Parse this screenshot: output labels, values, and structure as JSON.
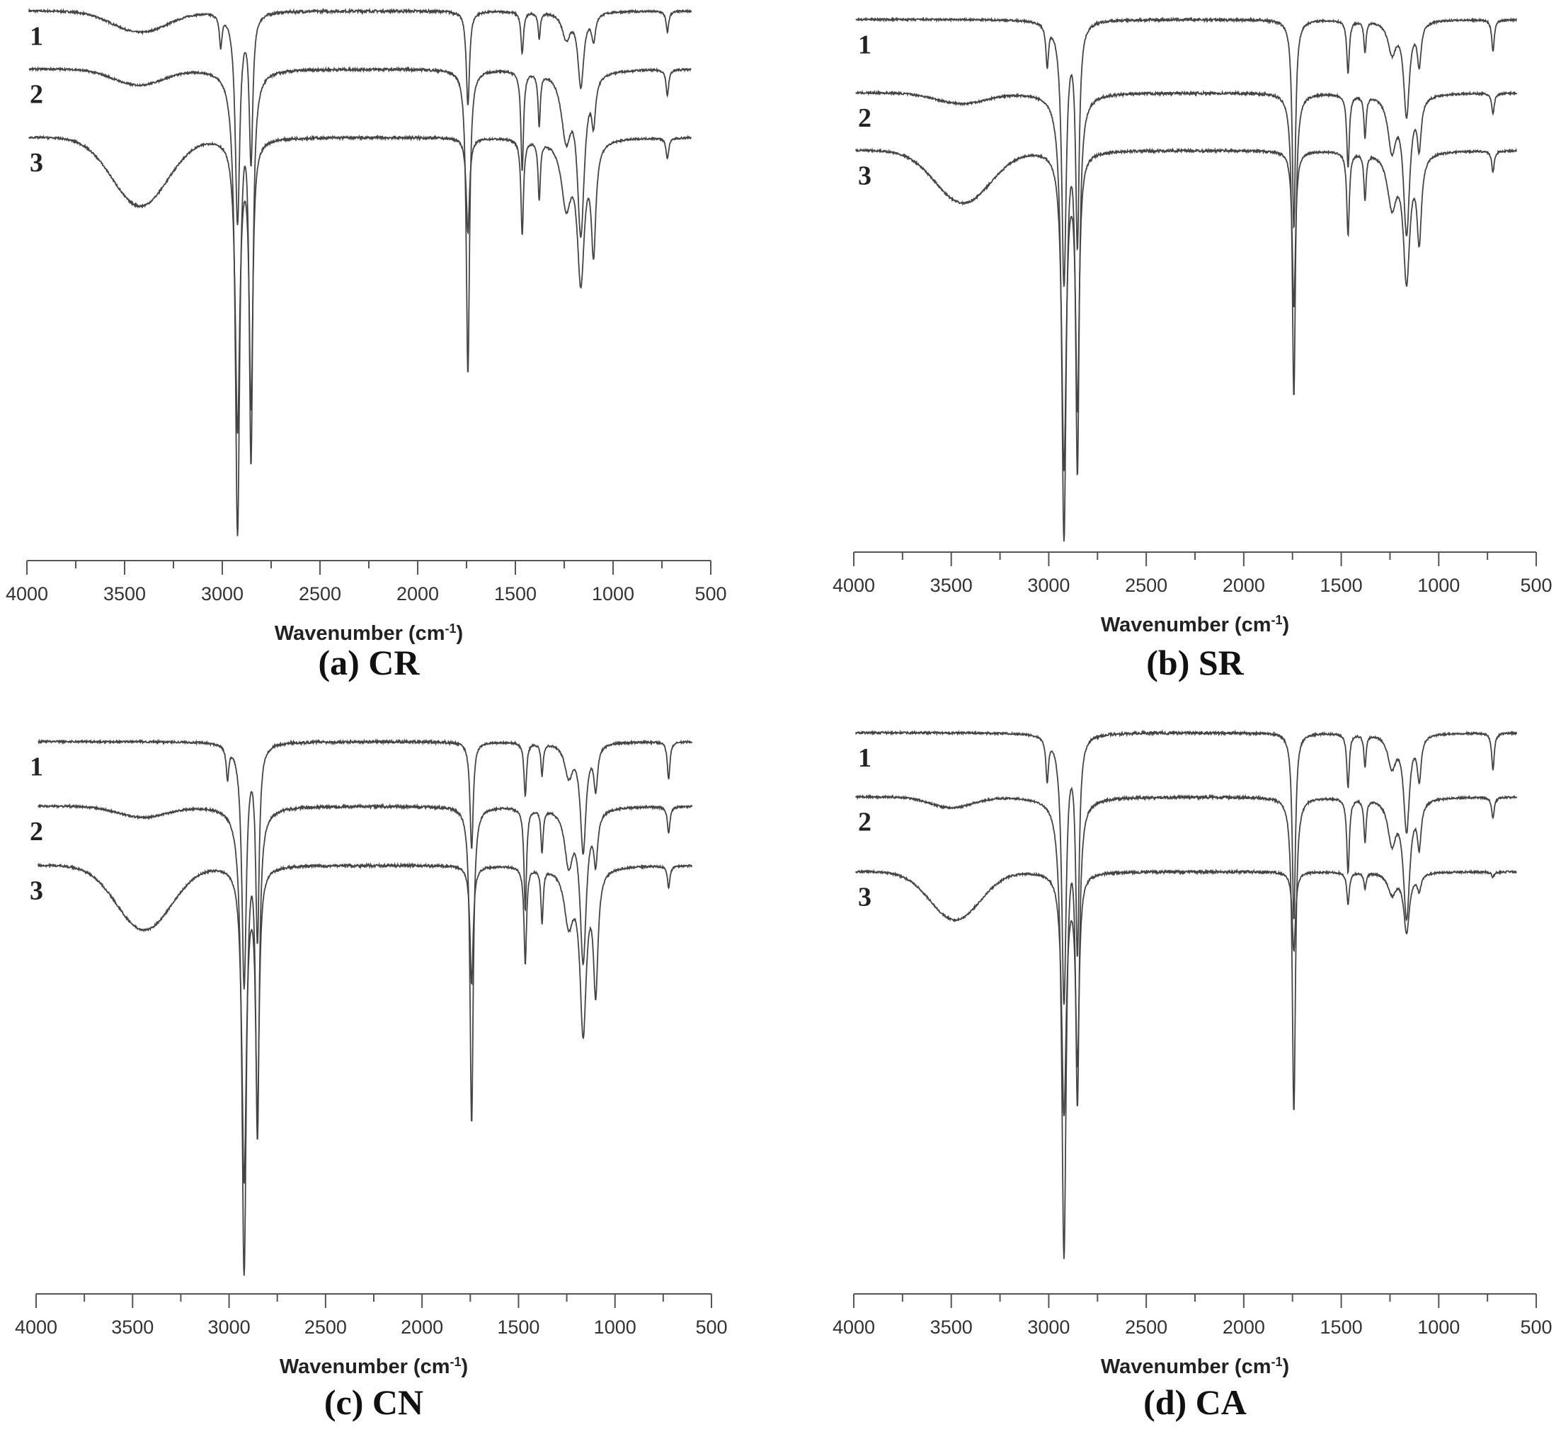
{
  "chart_data": [
    {
      "type": "line",
      "title": "(a) CR",
      "xlabel": "Wavenumber (cm",
      "xlabel_sup": "-1",
      "xlabel_end": ")",
      "xlim": [
        4000,
        500
      ],
      "x_reversed": true,
      "ylim": [
        0,
        100
      ],
      "y_axis_shown": false,
      "grid": false,
      "x_ticks": [
        "4000",
        "3500",
        "3000",
        "2500",
        "2000",
        "1500",
        "1000",
        "500"
      ],
      "line_color": "#444444",
      "series": [
        {
          "name": "1",
          "baseline": 99,
          "peaks": [
            [
              3420,
              4,
              200
            ],
            [
              3008,
              6,
              8
            ],
            [
              2922,
              40,
              14
            ],
            [
              2853,
              28,
              11
            ],
            [
              1743,
              18,
              10
            ],
            [
              1465,
              8,
              8
            ],
            [
              1378,
              5,
              7
            ],
            [
              1240,
              5,
              25
            ],
            [
              1165,
              14,
              18
            ],
            [
              1100,
              5,
              12
            ],
            [
              722,
              4,
              8
            ]
          ]
        },
        {
          "name": "2",
          "baseline": 88,
          "peaks": [
            [
              3430,
              3,
              180
            ],
            [
              2922,
              87,
              14
            ],
            [
              2853,
              72,
              11
            ],
            [
              1743,
              58,
              10
            ],
            [
              1465,
              19,
              8
            ],
            [
              1378,
              10,
              7
            ],
            [
              1240,
              12,
              30
            ],
            [
              1165,
              30,
              22
            ],
            [
              1100,
              8,
              12
            ],
            [
              722,
              5,
              8
            ]
          ]
        },
        {
          "name": "3",
          "baseline": 75,
          "peaks": [
            [
              3420,
              13,
              200
            ],
            [
              2922,
              55,
              14
            ],
            [
              2853,
              50,
              11
            ],
            [
              1743,
              18,
              10
            ],
            [
              1465,
              18,
              8
            ],
            [
              1378,
              11,
              7
            ],
            [
              1240,
              12,
              30
            ],
            [
              1165,
              26,
              22
            ],
            [
              1100,
              20,
              14
            ],
            [
              722,
              4,
              8
            ]
          ]
        }
      ]
    },
    {
      "type": "line",
      "title": "(b) SR",
      "xlabel": "Wavenumber (cm",
      "xlabel_sup": "-1",
      "xlabel_end": ")",
      "xlim": [
        4000,
        500
      ],
      "x_reversed": true,
      "ylim": [
        0,
        100
      ],
      "y_axis_shown": false,
      "grid": false,
      "x_ticks": [
        "4000",
        "3500",
        "3000",
        "2500",
        "2000",
        "1500",
        "1000",
        "500"
      ],
      "line_color": "#444444",
      "series": [
        {
          "name": "1",
          "baseline": 99,
          "peaks": [
            [
              3008,
              8,
              8
            ],
            [
              2922,
              50,
              14
            ],
            [
              2853,
              42,
              11
            ],
            [
              1743,
              40,
              10
            ],
            [
              1465,
              10,
              8
            ],
            [
              1378,
              6,
              7
            ],
            [
              1240,
              6,
              25
            ],
            [
              1165,
              18,
              18
            ],
            [
              1100,
              8,
              12
            ],
            [
              722,
              6,
              8
            ]
          ]
        },
        {
          "name": "2",
          "baseline": 85,
          "peaks": [
            [
              3450,
              2,
              180
            ],
            [
              2922,
              84,
              14
            ],
            [
              2853,
              70,
              11
            ],
            [
              1743,
              58,
              10
            ],
            [
              1465,
              14,
              8
            ],
            [
              1378,
              8,
              7
            ],
            [
              1240,
              10,
              25
            ],
            [
              1165,
              26,
              20
            ],
            [
              1100,
              9,
              12
            ],
            [
              722,
              4,
              8
            ]
          ]
        },
        {
          "name": "3",
          "baseline": 74,
          "peaks": [
            [
              3440,
              10,
              200
            ],
            [
              2922,
              60,
              14
            ],
            [
              2853,
              48,
              11
            ],
            [
              1743,
              30,
              10
            ],
            [
              1465,
              16,
              8
            ],
            [
              1378,
              9,
              7
            ],
            [
              1240,
              10,
              28
            ],
            [
              1165,
              24,
              20
            ],
            [
              1100,
              16,
              14
            ],
            [
              722,
              4,
              8
            ]
          ]
        }
      ]
    },
    {
      "type": "line",
      "title": "(c) CN",
      "xlabel": "Wavenumber (cm",
      "xlabel_sup": "-1",
      "xlabel_end": ")",
      "xlim": [
        4000,
        500
      ],
      "x_reversed": true,
      "ylim": [
        0,
        100
      ],
      "y_axis_shown": false,
      "grid": false,
      "x_ticks": [
        "4000",
        "3500",
        "3000",
        "2500",
        "2000",
        "1500",
        "1000",
        "500"
      ],
      "line_color": "#444444",
      "series": [
        {
          "name": "1",
          "baseline": 99,
          "peaks": [
            [
              3008,
              6,
              8
            ],
            [
              2922,
              45,
              14
            ],
            [
              2853,
              36,
              11
            ],
            [
              1743,
              20,
              10
            ],
            [
              1465,
              10,
              8
            ],
            [
              1378,
              6,
              7
            ],
            [
              1240,
              6,
              25
            ],
            [
              1165,
              20,
              18
            ],
            [
              1100,
              8,
              12
            ],
            [
              722,
              7,
              8
            ]
          ]
        },
        {
          "name": "2",
          "baseline": 87,
          "peaks": [
            [
              3450,
              2,
              180
            ],
            [
              2922,
              86,
              14
            ],
            [
              2853,
              59,
              11
            ],
            [
              1743,
              59,
              10
            ],
            [
              1465,
              19,
              8
            ],
            [
              1378,
              8,
              7
            ],
            [
              1240,
              10,
              25
            ],
            [
              1165,
              28,
              20
            ],
            [
              1100,
              9,
              12
            ],
            [
              722,
              5,
              8
            ]
          ]
        },
        {
          "name": "3",
          "baseline": 76,
          "peaks": [
            [
              3440,
              12,
              200
            ],
            [
              2922,
              58,
              14
            ],
            [
              2853,
              45,
              11
            ],
            [
              1743,
              22,
              10
            ],
            [
              1465,
              18,
              8
            ],
            [
              1378,
              10,
              7
            ],
            [
              1240,
              10,
              28
            ],
            [
              1165,
              30,
              20
            ],
            [
              1100,
              22,
              14
            ],
            [
              722,
              4,
              8
            ]
          ]
        }
      ]
    },
    {
      "type": "line",
      "title": "(d) CA",
      "xlabel": "Wavenumber (cm",
      "xlabel_sup": "-1",
      "xlabel_end": ")",
      "xlim": [
        4000,
        500
      ],
      "x_reversed": true,
      "ylim": [
        0,
        100
      ],
      "y_axis_shown": false,
      "grid": false,
      "x_ticks": [
        "4000",
        "3500",
        "3000",
        "2500",
        "2000",
        "1500",
        "1000",
        "500"
      ],
      "line_color": "#444444",
      "series": [
        {
          "name": "1",
          "baseline": 98,
          "peaks": [
            [
              3008,
              8,
              8
            ],
            [
              2922,
              50,
              14
            ],
            [
              2853,
              40,
              11
            ],
            [
              1743,
              35,
              10
            ],
            [
              1465,
              10,
              8
            ],
            [
              1378,
              6,
              7
            ],
            [
              1240,
              6,
              25
            ],
            [
              1165,
              18,
              18
            ],
            [
              1100,
              8,
              12
            ],
            [
              722,
              7,
              8
            ]
          ]
        },
        {
          "name": "2",
          "baseline": 86,
          "peaks": [
            [
              3500,
              2,
              150
            ],
            [
              2922,
              85,
              14
            ],
            [
              2853,
              55,
              11
            ],
            [
              1743,
              59,
              10
            ],
            [
              1465,
              14,
              8
            ],
            [
              1378,
              8,
              7
            ],
            [
              1240,
              8,
              25
            ],
            [
              1165,
              22,
              20
            ],
            [
              1100,
              8,
              12
            ],
            [
              722,
              4,
              8
            ]
          ]
        },
        {
          "name": "3",
          "baseline": 72,
          "peaks": [
            [
              3480,
              9,
              180
            ],
            [
              2922,
              45,
              14
            ],
            [
              2853,
              35,
              11
            ],
            [
              1743,
              15,
              10
            ],
            [
              1465,
              6,
              8
            ],
            [
              1378,
              3,
              7
            ],
            [
              1240,
              4,
              25
            ],
            [
              1165,
              11,
              18
            ],
            [
              1100,
              3,
              12
            ],
            [
              722,
              1,
              8
            ]
          ]
        }
      ]
    }
  ]
}
